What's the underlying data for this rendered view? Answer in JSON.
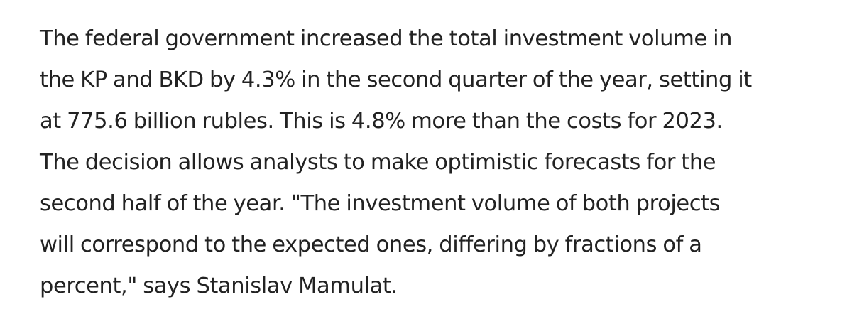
{
  "article": {
    "lines": [
      "The federal government increased the total investment volume in",
      "the KP and BKD by 4.3% in the second quarter of the year, setting it",
      "at 775.6 billion rubles. This is 4.8% more than the costs for 2023.",
      "The decision allows analysts to make optimistic forecasts for the",
      "second half of the year. \"The investment volume of both projects",
      "will correspond to the expected ones, differing by fractions of a",
      "percent,\" says Stanislav Mamulat."
    ]
  }
}
